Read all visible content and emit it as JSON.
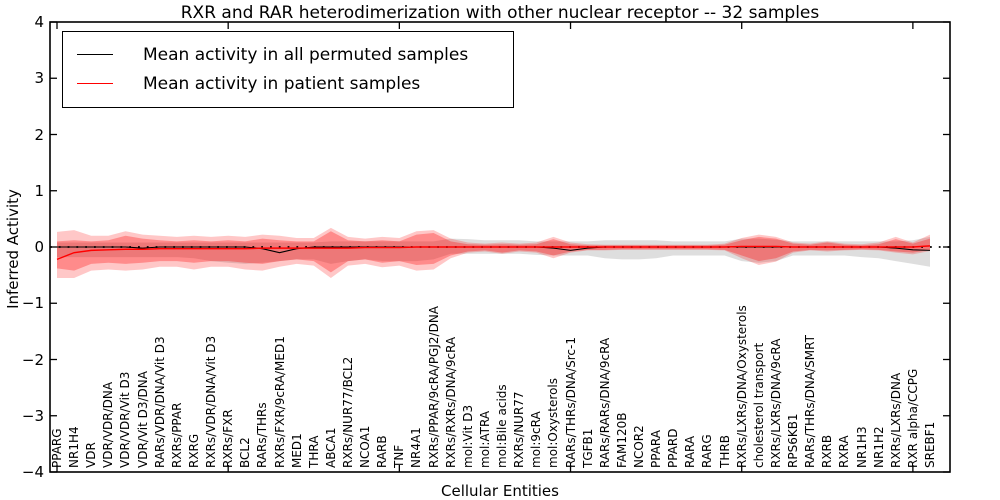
{
  "title": "RXR and RAR heterodimerization with other nuclear receptor -- 32 samples",
  "legend": {
    "entries": [
      {
        "label": "Mean activity in all permuted samples",
        "color": "#000000"
      },
      {
        "label": "Mean activity in patient samples",
        "color": "#ff0000"
      }
    ]
  },
  "chart_data": {
    "type": "line",
    "title": "RXR and RAR heterodimerization with other nuclear receptor -- 32 samples",
    "xlabel": "Cellular Entities",
    "ylabel": "Inferred Activity",
    "ylim": [
      -4,
      4
    ],
    "yticks": [
      "4",
      "3",
      "2",
      "1",
      "0",
      "−1",
      "−2",
      "−3",
      "−4"
    ],
    "ytick_values": [
      4,
      3,
      2,
      1,
      0,
      -1,
      -2,
      -3,
      -4
    ],
    "xtick_indices": [
      0,
      10,
      20,
      30,
      40,
      50
    ],
    "grid": false,
    "legend_position": "upper left",
    "zero_line_style": "dotted",
    "colors": {
      "permuted_line": "#000000",
      "patient_line": "#ff0000",
      "permuted_band": "rgba(0,0,0,0.13)",
      "patient_band_outer": "rgba(255,0,0,0.22)",
      "patient_band_inner": "rgba(255,0,0,0.30)"
    },
    "categories": [
      "PPARG",
      "NR1H4",
      "VDR",
      "VDR/VDR/DNA",
      "VDR/VDR/Vit D3",
      "VDR/Vit D3/DNA",
      "RARs/VDR/DNA/Vit D3",
      "RXRs/PPAR",
      "RXRG",
      "RXRs/VDR/DNA/Vit D3",
      "RXRs/FXR",
      "BCL2",
      "RARs/THRs",
      "RXRs/FXR/9cRA/MED1",
      "MED1",
      "THRA",
      "ABCA1",
      "RXRs/NUR77/BCL2",
      "NCOA1",
      "RARB",
      "TNF",
      "NR4A1",
      "RXRs/PPAR/9cRA/PGJ2/DNA",
      "RXRs/RXRs/DNA/9cRA",
      "mol:Vit D3",
      "mol:ATRA",
      "mol:Bile acids",
      "RXRs/NUR77",
      "mol:9cRA",
      "mol:Oxysterols",
      "RARs/THRs/DNA/Src-1",
      "TGFB1",
      "RARs/RARs/DNA/9cRA",
      "FAM120B",
      "NCOR2",
      "PPARA",
      "PPARD",
      "RARA",
      "RARG",
      "THRB",
      "RXRs/LXRs/DNA/Oxysterols",
      "cholesterol transport",
      "RXRs/LXRs/DNA/9cRA",
      "RPS6KB1",
      "RARs/THRs/DNA/SMRT",
      "RXRB",
      "RXRA",
      "NR1H3",
      "NR1H2",
      "RXRs/LXRs/DNA",
      "RXR alpha/CCPG",
      "SREBF1"
    ],
    "series": [
      {
        "name": "Mean activity in all permuted samples",
        "values": [
          0,
          0,
          0,
          0,
          0,
          -0.02,
          0,
          0,
          0,
          0,
          0,
          0,
          -0.03,
          -0.1,
          -0.03,
          0,
          0,
          0,
          0,
          0,
          0,
          0,
          0,
          0,
          0,
          0,
          0,
          0,
          0,
          -0.02,
          -0.06,
          -0.02,
          0,
          0,
          0,
          0,
          0,
          0,
          0,
          0,
          0,
          0,
          0,
          0,
          0,
          0,
          0,
          0,
          0,
          -0.02,
          -0.05,
          -0.06
        ]
      },
      {
        "name": "Mean activity in patient samples",
        "values": [
          -0.22,
          -0.1,
          -0.06,
          -0.05,
          -0.04,
          -0.04,
          -0.03,
          -0.03,
          -0.03,
          -0.03,
          -0.03,
          -0.03,
          -0.02,
          -0.02,
          -0.02,
          -0.02,
          -0.02,
          -0.02,
          -0.01,
          -0.01,
          -0.01,
          0,
          0,
          0,
          0,
          0,
          0,
          0,
          0,
          0,
          0,
          0,
          0,
          0,
          0,
          0,
          0,
          0,
          0,
          0,
          0.01,
          0.01,
          0.01,
          0,
          0,
          0,
          0,
          0,
          0,
          0,
          0,
          0.02
        ]
      }
    ],
    "bands": {
      "permuted_upper": [
        0.08,
        0.08,
        0.08,
        0.08,
        0.08,
        0.08,
        0.08,
        0.08,
        0.08,
        0.08,
        0.08,
        0.08,
        0.08,
        0.08,
        0.08,
        0.08,
        0.1,
        0.1,
        0.1,
        0.1,
        0.1,
        0.1,
        0.1,
        0.15,
        0.14,
        0.12,
        0.12,
        0.12,
        0.1,
        0.1,
        0.1,
        0.1,
        0.12,
        0.12,
        0.12,
        0.12,
        0.1,
        0.1,
        0.1,
        0.1,
        0.15,
        0.15,
        0.13,
        0.1,
        0.1,
        0.1,
        0.1,
        0.1,
        0.1,
        0.1,
        0.12,
        0.18
      ],
      "permuted_lower": [
        -0.18,
        -0.18,
        -0.18,
        -0.18,
        -0.18,
        -0.18,
        -0.18,
        -0.18,
        -0.2,
        -0.25,
        -0.28,
        -0.3,
        -0.28,
        -0.25,
        -0.22,
        -0.22,
        -0.3,
        -0.25,
        -0.22,
        -0.25,
        -0.25,
        -0.25,
        -0.22,
        -0.12,
        -0.12,
        -0.12,
        -0.12,
        -0.12,
        -0.14,
        -0.15,
        -0.15,
        -0.15,
        -0.2,
        -0.22,
        -0.22,
        -0.2,
        -0.15,
        -0.15,
        -0.15,
        -0.15,
        -0.25,
        -0.28,
        -0.25,
        -0.15,
        -0.15,
        -0.15,
        -0.15,
        -0.18,
        -0.2,
        -0.25,
        -0.3,
        -0.35
      ],
      "patient_outer_upper": [
        0.27,
        0.3,
        0.2,
        0.2,
        0.28,
        0.22,
        0.2,
        0.18,
        0.2,
        0.18,
        0.2,
        0.18,
        0.22,
        0.2,
        0.16,
        0.16,
        0.34,
        0.18,
        0.15,
        0.18,
        0.16,
        0.28,
        0.3,
        0.15,
        0.08,
        0.06,
        0.08,
        0.06,
        0.08,
        0.18,
        0.08,
        0.05,
        0.04,
        0.04,
        0.04,
        0.04,
        0.04,
        0.04,
        0.04,
        0.06,
        0.16,
        0.22,
        0.18,
        0.08,
        0.06,
        0.1,
        0.06,
        0.05,
        0.08,
        0.18,
        0.08,
        0.22
      ],
      "patient_outer_lower": [
        -0.55,
        -0.55,
        -0.42,
        -0.4,
        -0.42,
        -0.4,
        -0.35,
        -0.35,
        -0.4,
        -0.35,
        -0.35,
        -0.4,
        -0.42,
        -0.35,
        -0.3,
        -0.33,
        -0.55,
        -0.33,
        -0.3,
        -0.36,
        -0.33,
        -0.42,
        -0.4,
        -0.2,
        -0.1,
        -0.08,
        -0.12,
        -0.08,
        -0.1,
        -0.2,
        -0.1,
        -0.06,
        -0.06,
        -0.05,
        -0.05,
        -0.05,
        -0.05,
        -0.05,
        -0.05,
        -0.06,
        -0.2,
        -0.32,
        -0.26,
        -0.1,
        -0.06,
        -0.08,
        -0.06,
        -0.05,
        -0.06,
        -0.1,
        -0.13,
        -0.07
      ],
      "patient_inner_upper": [
        0.1,
        0.12,
        0.1,
        0.12,
        0.2,
        0.15,
        0.12,
        0.1,
        0.12,
        0.1,
        0.12,
        0.1,
        0.15,
        0.12,
        0.1,
        0.1,
        0.28,
        0.12,
        0.1,
        0.12,
        0.1,
        0.22,
        0.25,
        0.1,
        0.05,
        0.04,
        0.05,
        0.04,
        0.05,
        0.14,
        0.05,
        0.03,
        0.03,
        0.03,
        0.03,
        0.03,
        0.03,
        0.03,
        0.03,
        0.04,
        0.12,
        0.18,
        0.15,
        0.06,
        0.04,
        0.08,
        0.04,
        0.03,
        0.05,
        0.14,
        0.06,
        0.15
      ],
      "patient_inner_lower": [
        -0.38,
        -0.42,
        -0.3,
        -0.28,
        -0.3,
        -0.28,
        -0.25,
        -0.25,
        -0.28,
        -0.25,
        -0.25,
        -0.28,
        -0.3,
        -0.25,
        -0.22,
        -0.25,
        -0.45,
        -0.25,
        -0.22,
        -0.28,
        -0.25,
        -0.32,
        -0.3,
        -0.15,
        -0.08,
        -0.06,
        -0.1,
        -0.06,
        -0.08,
        -0.15,
        -0.08,
        -0.05,
        -0.05,
        -0.04,
        -0.04,
        -0.04,
        -0.04,
        -0.04,
        -0.04,
        -0.05,
        -0.15,
        -0.25,
        -0.2,
        -0.08,
        -0.05,
        -0.06,
        -0.05,
        -0.04,
        -0.05,
        -0.08,
        -0.1,
        -0.05
      ]
    }
  }
}
